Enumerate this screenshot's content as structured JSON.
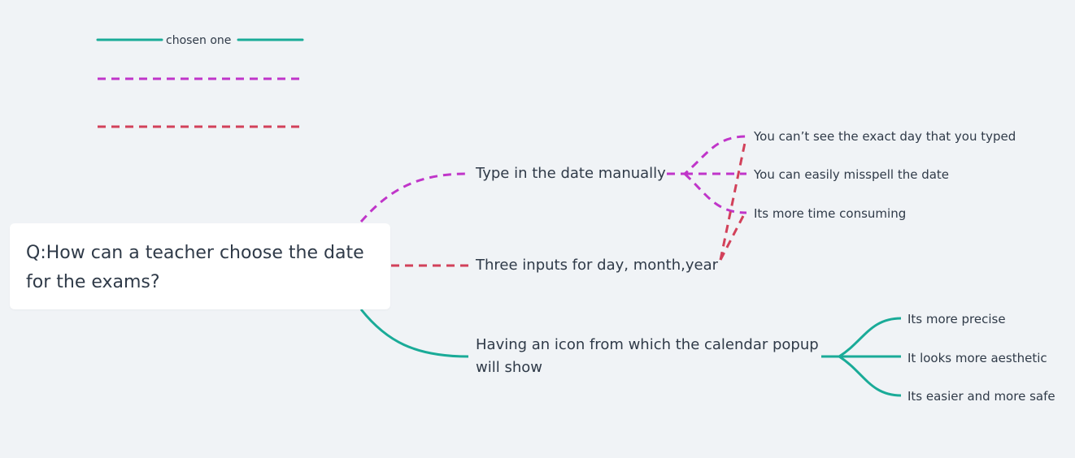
{
  "legend": {
    "items": [
      {
        "label": "chosen one",
        "color": "#1aab98",
        "style": "solid"
      },
      {
        "label": "",
        "color": "#c035c9",
        "style": "dashed"
      },
      {
        "label": "",
        "color": "#d2415a",
        "style": "dashed"
      }
    ]
  },
  "root": {
    "text": "Q:How can a teacher choose the date for the exams?"
  },
  "branches": [
    {
      "id": "manual",
      "label": "Type in the date manually",
      "color": "#c035c9",
      "style": "dashed",
      "children": [
        "You can’t see the exact day that you typed",
        "You can easily misspell the date",
        "Its more time consuming"
      ]
    },
    {
      "id": "three-inputs",
      "label": "Three inputs for day, month,year",
      "color": "#d2415a",
      "style": "dashed",
      "children": []
    },
    {
      "id": "calendar",
      "label_line1": "Having an icon from which the calendar popup",
      "label_line2": "will show",
      "color": "#1aab98",
      "style": "solid",
      "children": [
        "Its more precise",
        "It looks more aesthetic",
        "Its easier and more safe"
      ]
    }
  ]
}
